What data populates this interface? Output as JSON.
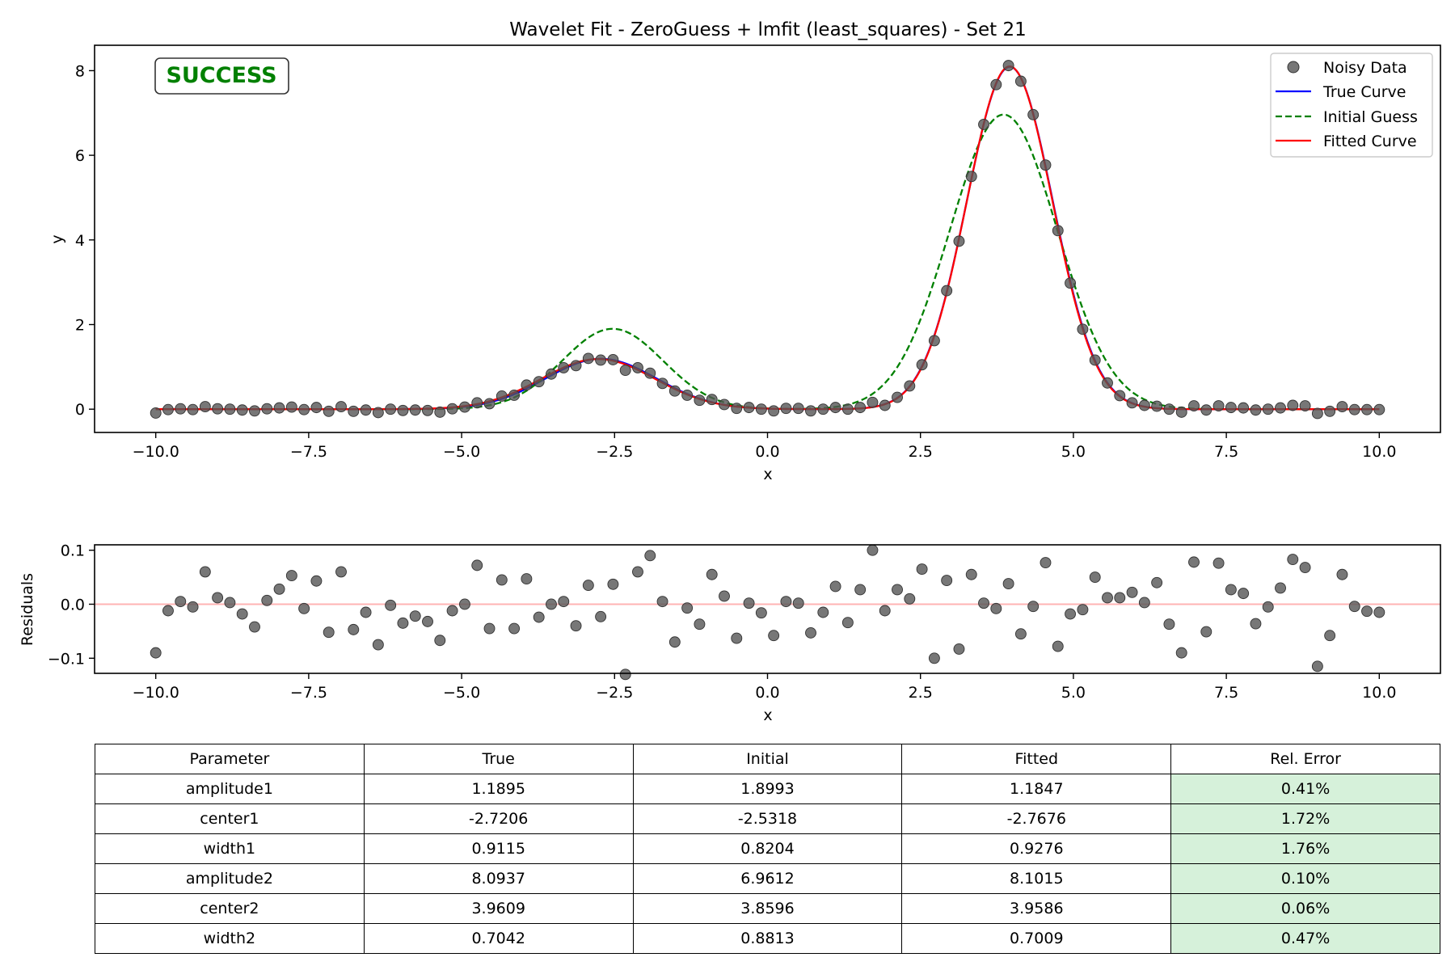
{
  "chart_data": [
    {
      "type": "scatter",
      "title": "Wavelet Fit - ZeroGuess + lmfit (least_squares) - Set 21",
      "xlabel": "x",
      "ylabel": "y",
      "xlim": [
        -11.0,
        11.0
      ],
      "ylim": [
        -0.55,
        8.6
      ],
      "xticks": [
        -10.0,
        -7.5,
        -5.0,
        -2.5,
        0.0,
        2.5,
        5.0,
        7.5,
        10.0
      ],
      "xtick_labels": [
        "−10.0",
        "−7.5",
        "−5.0",
        "−2.5",
        "0.0",
        "2.5",
        "5.0",
        "7.5",
        "10.0"
      ],
      "yticks": [
        0,
        2,
        4,
        6,
        8
      ],
      "ytick_labels": [
        "0",
        "2",
        "4",
        "6",
        "8"
      ],
      "grid": false,
      "legend_position": "top-right",
      "status_label": "SUCCESS",
      "status_color": "#008000",
      "x": [
        -10.0,
        -9.798,
        -9.596,
        -9.394,
        -9.192,
        -8.99,
        -8.788,
        -8.586,
        -8.384,
        -8.182,
        -7.98,
        -7.778,
        -7.576,
        -7.374,
        -7.172,
        -6.97,
        -6.768,
        -6.566,
        -6.364,
        -6.162,
        -5.96,
        -5.758,
        -5.556,
        -5.354,
        -5.152,
        -4.949,
        -4.747,
        -4.545,
        -4.343,
        -4.141,
        -3.939,
        -3.737,
        -3.535,
        -3.333,
        -3.131,
        -2.929,
        -2.727,
        -2.525,
        -2.323,
        -2.121,
        -1.919,
        -1.717,
        -1.515,
        -1.313,
        -1.111,
        -0.909,
        -0.707,
        -0.505,
        -0.303,
        -0.101,
        0.101,
        0.303,
        0.505,
        0.707,
        0.909,
        1.111,
        1.313,
        1.515,
        1.717,
        1.919,
        2.121,
        2.323,
        2.525,
        2.727,
        2.929,
        3.131,
        3.333,
        3.535,
        3.737,
        3.939,
        4.141,
        4.343,
        4.545,
        4.747,
        4.949,
        5.152,
        5.354,
        5.556,
        5.758,
        5.96,
        6.162,
        6.364,
        6.566,
        6.768,
        6.97,
        7.172,
        7.374,
        7.576,
        7.778,
        7.98,
        8.182,
        8.384,
        8.586,
        8.788,
        8.99,
        9.192,
        9.394,
        9.596,
        9.798,
        10.0
      ],
      "series": [
        {
          "name": "Noisy Data",
          "marker": "circle",
          "color": "#555555",
          "values": [
            -0.09,
            -0.01,
            0.01,
            -0.01,
            0.06,
            0.01,
            0.0,
            -0.02,
            -0.04,
            0.01,
            0.03,
            0.05,
            -0.01,
            0.04,
            -0.05,
            0.06,
            -0.05,
            -0.02,
            -0.08,
            0.0,
            -0.03,
            -0.02,
            -0.03,
            -0.07,
            0.01,
            0.05,
            0.15,
            0.13,
            0.31,
            0.33,
            0.57,
            0.65,
            0.83,
            0.98,
            1.03,
            1.2,
            1.16,
            1.17,
            0.92,
            0.98,
            0.85,
            0.61,
            0.43,
            0.33,
            0.21,
            0.23,
            0.11,
            0.02,
            0.04,
            0.0,
            -0.04,
            0.02,
            0.02,
            -0.04,
            0.0,
            0.04,
            0.0,
            0.04,
            0.16,
            0.09,
            0.28,
            0.55,
            1.05,
            1.62,
            2.8,
            3.97,
            5.5,
            6.73,
            7.67,
            8.12,
            7.75,
            6.96,
            5.77,
            4.22,
            2.98,
            1.89,
            1.16,
            0.62,
            0.32,
            0.15,
            0.09,
            0.07,
            0.0,
            -0.07,
            0.08,
            -0.02,
            0.08,
            0.04,
            0.03,
            -0.02,
            0.0,
            0.03,
            0.09,
            0.08,
            -0.1,
            -0.05,
            0.06,
            -0.01,
            -0.01,
            -0.01
          ]
        },
        {
          "name": "True Curve",
          "style": "solid",
          "color": "#0000ff",
          "amplitude1": 1.1895,
          "center1": -2.7206,
          "width1": 0.9115,
          "amplitude2": 8.0937,
          "center2": 3.9609,
          "width2": 0.7042
        },
        {
          "name": "Initial Guess",
          "style": "dashed",
          "color": "#008000",
          "amplitude1": 1.8993,
          "center1": -2.5318,
          "width1": 0.8204,
          "amplitude2": 6.9612,
          "center2": 3.8596,
          "width2": 0.8813
        },
        {
          "name": "Fitted Curve",
          "style": "solid",
          "color": "#ff0000",
          "amplitude1": 1.1847,
          "center1": -2.7676,
          "width1": 0.9276,
          "amplitude2": 8.1015,
          "center2": 3.9586,
          "width2": 0.7009
        }
      ]
    },
    {
      "type": "scatter",
      "xlabel": "x",
      "ylabel": "Residuals",
      "xlim": [
        -11.0,
        11.0
      ],
      "ylim": [
        -0.128,
        0.11
      ],
      "xticks": [
        -10.0,
        -7.5,
        -5.0,
        -2.5,
        0.0,
        2.5,
        5.0,
        7.5,
        10.0
      ],
      "xtick_labels": [
        "−10.0",
        "−7.5",
        "−5.0",
        "−2.5",
        "0.0",
        "2.5",
        "5.0",
        "7.5",
        "10.0"
      ],
      "yticks": [
        0.1,
        0.0,
        -0.1
      ],
      "ytick_labels": [
        "0.1",
        "0.0",
        "−0.1"
      ],
      "zero_line_color": "#ffb3b3",
      "marker_color": "#555555",
      "values": [
        -0.09,
        -0.012,
        0.005,
        -0.005,
        0.06,
        0.012,
        0.003,
        -0.018,
        -0.042,
        0.007,
        0.028,
        0.053,
        -0.008,
        0.043,
        -0.052,
        0.06,
        -0.047,
        -0.015,
        -0.075,
        -0.002,
        -0.035,
        -0.022,
        -0.032,
        -0.067,
        -0.012,
        0.0,
        0.072,
        -0.045,
        0.045,
        -0.045,
        0.047,
        -0.024,
        0.0,
        0.005,
        -0.04,
        0.035,
        -0.023,
        0.037,
        -0.13,
        0.06,
        0.09,
        0.005,
        -0.07,
        -0.007,
        -0.037,
        0.055,
        0.015,
        -0.063,
        0.002,
        -0.016,
        -0.058,
        0.005,
        0.002,
        -0.053,
        -0.015,
        0.033,
        -0.034,
        0.027,
        0.1,
        -0.012,
        0.027,
        0.01,
        0.065,
        -0.1,
        0.044,
        -0.083,
        0.055,
        0.002,
        -0.008,
        0.038,
        -0.055,
        -0.004,
        0.077,
        -0.078,
        -0.018,
        -0.01,
        0.05,
        0.012,
        0.012,
        0.022,
        0.003,
        0.04,
        -0.037,
        -0.09,
        0.078,
        -0.051,
        0.076,
        0.027,
        0.02,
        -0.036,
        -0.005,
        0.03,
        0.083,
        0.068,
        -0.115,
        -0.058,
        0.055,
        -0.004,
        -0.013,
        -0.015
      ]
    }
  ],
  "table": {
    "headers": [
      "Parameter",
      "True",
      "Initial",
      "Fitted",
      "Rel. Error"
    ],
    "highlight_color": "#d6f1da",
    "rows": [
      [
        "amplitude1",
        "1.1895",
        "1.8993",
        "1.1847",
        "0.41%"
      ],
      [
        "center1",
        "-2.7206",
        "-2.5318",
        "-2.7676",
        "1.72%"
      ],
      [
        "width1",
        "0.9115",
        "0.8204",
        "0.9276",
        "1.76%"
      ],
      [
        "amplitude2",
        "8.0937",
        "6.9612",
        "8.1015",
        "0.10%"
      ],
      [
        "center2",
        "3.9609",
        "3.8596",
        "3.9586",
        "0.06%"
      ],
      [
        "width2",
        "0.7042",
        "0.8813",
        "0.7009",
        "0.47%"
      ]
    ]
  }
}
